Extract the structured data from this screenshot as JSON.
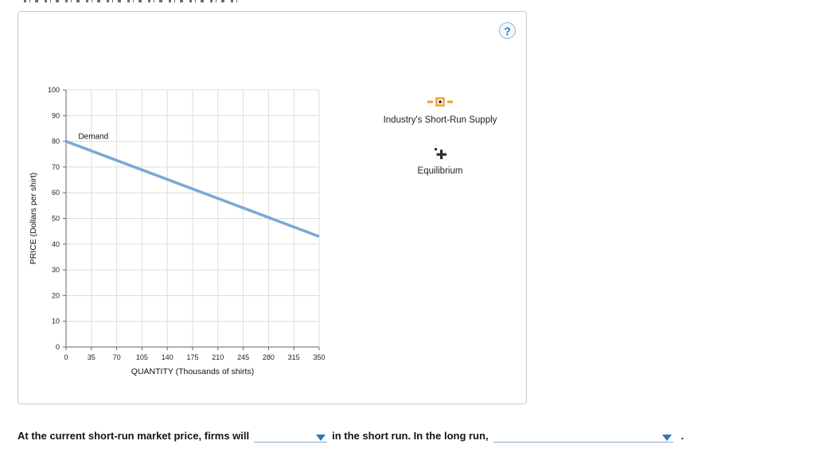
{
  "panel": {
    "help_label": "?"
  },
  "chart_data": {
    "type": "line",
    "title": "",
    "xlabel": "QUANTITY (Thousands of shirts)",
    "ylabel": "PRICE (Dollars per shirt)",
    "xlim": [
      0,
      350
    ],
    "ylim": [
      0,
      100
    ],
    "xticks": [
      0,
      35,
      70,
      105,
      140,
      175,
      210,
      245,
      280,
      315,
      350
    ],
    "yticks": [
      0,
      10,
      20,
      30,
      40,
      50,
      60,
      70,
      80,
      90,
      100
    ],
    "grid": true,
    "legend_position": "right-panel",
    "series": [
      {
        "name": "Demand",
        "color": "#7aa8d8",
        "points": [
          [
            0,
            80
          ],
          [
            350,
            43
          ]
        ],
        "label_at": [
          17,
          81
        ]
      }
    ]
  },
  "tools": [
    {
      "label": "Industry's Short-Run Supply",
      "icon": "supply-line-tool",
      "color": "#f09d2e"
    },
    {
      "label": "Equilibrium",
      "icon": "equilibrium-point-tool",
      "color": "#2f2f2f"
    }
  ],
  "question": {
    "text_before_dropdown1": "At the current short-run market price, firms will",
    "dropdown1_value": "",
    "text_between": "in the short run. In the long run,",
    "dropdown2_value": "",
    "text_after": "."
  },
  "colors": {
    "demand_line": "#7aa8d8",
    "grid": "#dcdcdc",
    "axis": "#666666",
    "dropdown_accent": "#2f78b8",
    "supply_tool": "#f09d2e"
  }
}
